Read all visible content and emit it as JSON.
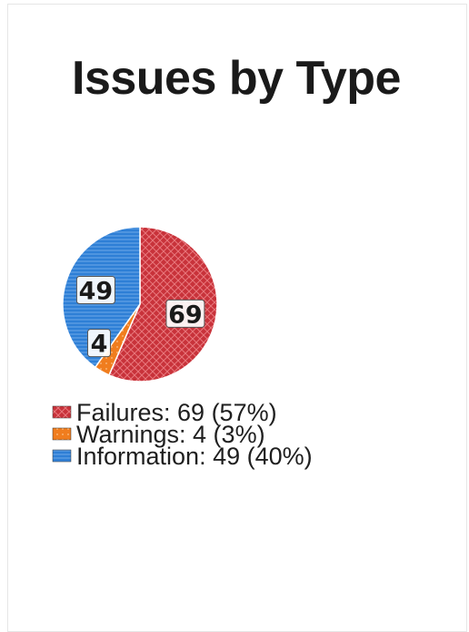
{
  "chart_data": {
    "type": "pie",
    "title": "Issues by Type",
    "categories": [
      "Failures",
      "Warnings",
      "Information"
    ],
    "values": [
      69,
      4,
      49
    ],
    "percentages": [
      "57%",
      "3%",
      "40%"
    ],
    "legend": [
      "Failures: 69 (57%)",
      "Warnings: 4 (3%)",
      "Information: 49 (40%)"
    ],
    "data_labels": [
      "69",
      "4",
      "49"
    ],
    "colors": [
      "#c8323a",
      "#f07d1e",
      "#2e7fd6"
    ],
    "legend_position": "bottom-left"
  }
}
